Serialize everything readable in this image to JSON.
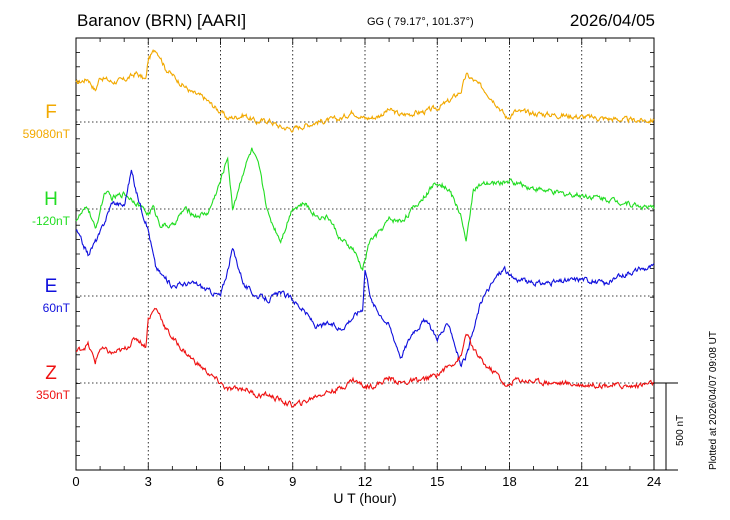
{
  "header": {
    "station": "Baranov (BRN)  [AARI]",
    "coords": "GG ( 79.17°, 101.37°)",
    "date": "2026/04/05"
  },
  "side_note": "Plotted at 2026/04/07 09:08 UT",
  "scale_label": "500 nT",
  "chart_data": {
    "type": "line",
    "xlabel": "U T (hour)",
    "xlim": [
      0,
      24
    ],
    "xticks": [
      0,
      3,
      6,
      9,
      12,
      15,
      18,
      21,
      24
    ],
    "xtick_labels": [
      "0",
      "3",
      "6",
      "9",
      "12",
      "15",
      "18",
      "21",
      "24"
    ],
    "scale_bar_nT": 500,
    "grid": true,
    "series": [
      {
        "name": "F",
        "baseline": "59080nT",
        "color": "#f2a900",
        "hours": [
          0,
          0.5,
          0.8,
          1.0,
          1.5,
          2.0,
          2.5,
          2.9,
          3.0,
          3.3,
          3.5,
          3.7,
          4.0,
          4.3,
          4.8,
          5.3,
          5.8,
          6.0,
          6.3,
          7.0,
          7.5,
          8.0,
          8.5,
          9.0,
          9.5,
          10.0,
          10.5,
          11.0,
          11.5,
          12.0,
          12.5,
          13.0,
          13.5,
          14.0,
          14.5,
          15.0,
          15.5,
          16.0,
          16.2,
          16.5,
          17.0,
          17.5,
          17.9,
          18.2,
          19.0,
          20.0,
          21.0,
          22.0,
          23.0,
          24.0
        ],
        "values": [
          220,
          250,
          180,
          260,
          230,
          240,
          280,
          240,
          360,
          420,
          380,
          310,
          270,
          230,
          170,
          140,
          80,
          60,
          20,
          40,
          0,
          10,
          -30,
          -40,
          -20,
          0,
          10,
          20,
          60,
          20,
          30,
          70,
          40,
          50,
          60,
          80,
          120,
          180,
          270,
          240,
          180,
          100,
          20,
          60,
          50,
          40,
          30,
          20,
          10,
          10
        ]
      },
      {
        "name": "H",
        "baseline": "-120nT",
        "color": "#22dd22",
        "hours": [
          0,
          0.5,
          0.8,
          1.2,
          1.5,
          2.0,
          2.5,
          3.0,
          3.2,
          3.5,
          4.0,
          4.5,
          5.0,
          5.5,
          6.0,
          6.3,
          6.5,
          7.0,
          7.3,
          7.6,
          8.0,
          8.5,
          9.0,
          9.5,
          10.0,
          10.5,
          11.0,
          11.5,
          11.9,
          12.2,
          12.5,
          13.0,
          13.5,
          14.0,
          14.5,
          15.0,
          15.5,
          16.0,
          16.2,
          16.5,
          17.0,
          17.5,
          18.0,
          19.0,
          20.0,
          21.0,
          22.0,
          23.0,
          24.0
        ],
        "values": [
          -60,
          10,
          -120,
          100,
          60,
          90,
          40,
          -30,
          10,
          -90,
          -100,
          0,
          -40,
          -20,
          160,
          300,
          0,
          240,
          340,
          240,
          -40,
          -180,
          10,
          30,
          -40,
          -50,
          -180,
          -230,
          -350,
          -180,
          -150,
          -60,
          -70,
          0,
          80,
          160,
          110,
          -40,
          -200,
          120,
          140,
          150,
          160,
          120,
          90,
          80,
          60,
          30,
          0
        ]
      },
      {
        "name": "E",
        "baseline": "60nT",
        "color": "#1010dd",
        "hours": [
          0,
          0.5,
          1.0,
          1.5,
          2.0,
          2.3,
          2.5,
          3.0,
          3.3,
          3.5,
          4.0,
          4.5,
          5.0,
          5.5,
          6.0,
          6.3,
          6.5,
          7.0,
          7.5,
          8.0,
          8.5,
          9.0,
          9.5,
          10.0,
          10.5,
          11.0,
          11.5,
          11.9,
          12.0,
          12.3,
          13.0,
          13.5,
          14.0,
          14.5,
          15.0,
          15.5,
          16.0,
          16.3,
          16.8,
          17.0,
          17.5,
          17.8,
          18.0,
          19.0,
          20.0,
          21.0,
          22.0,
          23.0,
          24.0
        ],
        "values": [
          380,
          240,
          360,
          540,
          520,
          720,
          600,
          380,
          170,
          130,
          60,
          70,
          70,
          30,
          0,
          150,
          270,
          60,
          0,
          -20,
          20,
          -20,
          -90,
          -180,
          -160,
          -190,
          -120,
          -70,
          160,
          -40,
          -170,
          -350,
          -200,
          -140,
          -240,
          -160,
          -410,
          -310,
          -40,
          10,
          120,
          160,
          110,
          70,
          80,
          100,
          70,
          140,
          170
        ]
      },
      {
        "name": "Z",
        "baseline": "350nT",
        "color": "#ee1111",
        "hours": [
          0,
          0.5,
          0.8,
          1.0,
          1.5,
          2.0,
          2.5,
          2.9,
          3.0,
          3.3,
          3.5,
          3.7,
          4.0,
          4.3,
          4.8,
          5.3,
          5.8,
          6.0,
          6.3,
          7.0,
          7.5,
          8.0,
          8.5,
          9.0,
          9.5,
          10.0,
          10.5,
          11.0,
          11.5,
          12.0,
          12.5,
          13.0,
          13.5,
          14.0,
          14.5,
          15.0,
          15.5,
          16.0,
          16.2,
          16.5,
          17.0,
          17.5,
          17.9,
          18.2,
          19.0,
          20.0,
          21.0,
          22.0,
          23.0,
          24.0
        ],
        "values": [
          180,
          220,
          120,
          200,
          170,
          190,
          260,
          210,
          370,
          430,
          390,
          320,
          260,
          210,
          140,
          80,
          20,
          0,
          -40,
          -30,
          -70,
          -70,
          -100,
          -130,
          -110,
          -70,
          -50,
          -30,
          20,
          -20,
          -10,
          30,
          0,
          10,
          20,
          50,
          100,
          150,
          290,
          190,
          100,
          50,
          -30,
          20,
          10,
          0,
          -10,
          -10,
          -20,
          0
        ]
      }
    ]
  }
}
